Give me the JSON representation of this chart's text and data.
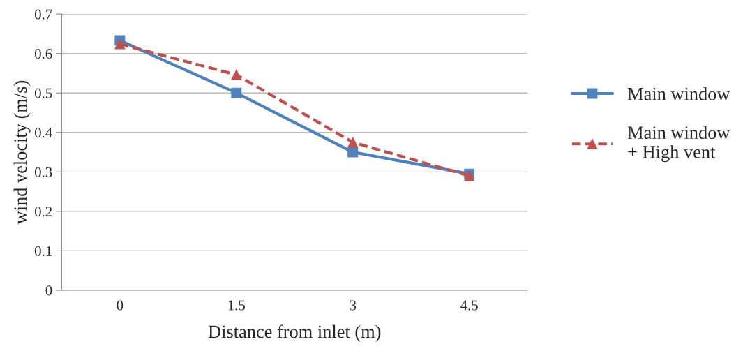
{
  "chart_data": {
    "type": "line",
    "xlabel": "Distance from inlet (m)",
    "ylabel": "wind velocity (m/s)",
    "categories": [
      "0",
      "1.5",
      "3",
      "4.5"
    ],
    "series": [
      {
        "name": "Main window",
        "color": "#4f81bd",
        "values": [
          0.633,
          0.5,
          0.35,
          0.295
        ],
        "marker": "square",
        "line_style": "solid"
      },
      {
        "name": "Main window\n+ High vent",
        "color": "#c0504d",
        "values": [
          0.624,
          0.546,
          0.375,
          0.29
        ],
        "marker": "triangle",
        "line_style": "dashed"
      }
    ],
    "ylim": [
      0,
      0.7
    ],
    "yticks": [
      0,
      0.1,
      0.2,
      0.3,
      0.4,
      0.5,
      0.6,
      0.7
    ],
    "grid": "y",
    "legend": "right"
  }
}
